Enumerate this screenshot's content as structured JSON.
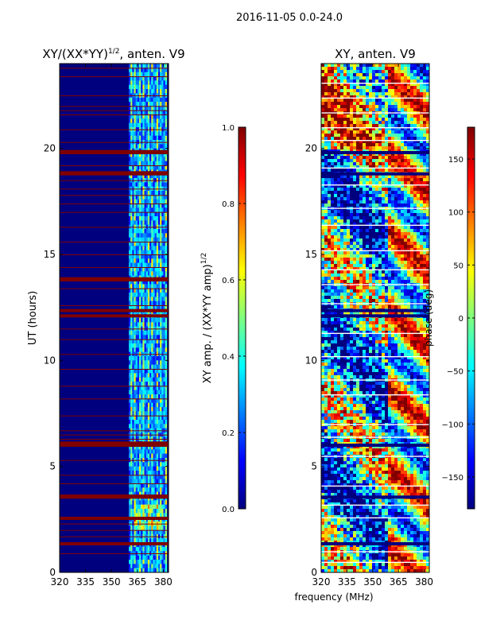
{
  "colors": {
    "jet": [
      "#00007f",
      "#0000ff",
      "#007fff",
      "#00ffff",
      "#7fff7f",
      "#ffff00",
      "#ff7f00",
      "#ff0000",
      "#7f0000"
    ],
    "background": "#00007f",
    "flag": "#7f0000"
  },
  "chart_data": {
    "suptitle": "2016-11-05 0.0-24.0",
    "shared_xlabel": "frequency (MHz)",
    "panels": [
      {
        "type": "heatmap",
        "title_main": "XY/(XX*YY)",
        "title_sup": "1/2",
        "title_tail": ", anten. V9",
        "xlabel": "",
        "ylabel": "UT (hours)",
        "xlim": [
          320,
          383
        ],
        "ylim": [
          0,
          24
        ],
        "xticks": [
          "320",
          "335",
          "350",
          "365",
          "380"
        ],
        "xtick_values": [
          320,
          335,
          350,
          365,
          380
        ],
        "yticks": [
          "0",
          "5",
          "10",
          "15",
          "20"
        ],
        "ytick_values": [
          0,
          5,
          10,
          15,
          20
        ],
        "active_band_mhz": [
          360,
          382
        ],
        "flagged_hours": [
          1.35,
          2.55,
          3.55,
          3.6,
          6.0,
          6.1,
          12.1,
          12.35,
          13.8,
          13.85,
          18.8,
          18.85,
          19.8,
          19.85
        ],
        "thin_flag_hours": [
          0.9,
          1.7,
          2.0,
          2.3,
          4.2,
          4.6,
          5.3,
          6.3,
          6.5,
          6.7,
          7.4,
          8.2,
          8.8,
          9.6,
          10.3,
          11.0,
          11.5,
          12.6,
          13.4,
          14.4,
          15.0,
          15.6,
          16.3,
          17.0,
          17.4,
          17.8,
          18.1,
          18.5,
          19.2,
          20.3,
          20.9,
          21.6,
          21.8,
          22.0,
          22.5,
          23.4,
          23.8
        ]
      },
      {
        "type": "heatmap",
        "title_main": "XY, anten. V9",
        "xlabel": "frequency (MHz)",
        "ylabel": "",
        "xlim": [
          320,
          383
        ],
        "ylim": [
          0,
          24
        ],
        "xticks": [
          "320",
          "335",
          "350",
          "365",
          "380"
        ],
        "xtick_values": [
          320,
          335,
          350,
          365,
          380
        ],
        "yticks": [
          "0",
          "5",
          "10",
          "15",
          "20"
        ],
        "ytick_values": [
          0,
          5,
          10,
          15,
          20
        ],
        "flagged_hours": [
          1.35,
          3.55,
          6.0,
          12.1,
          12.35,
          18.8,
          19.8
        ],
        "white_gap_hours": [
          0.5,
          1.0,
          2.6,
          3.2,
          4.1,
          5.5,
          6.4,
          7.0,
          8.4,
          9.1,
          10.2,
          11.3,
          12.7,
          13.6,
          14.3,
          15.2,
          16.4,
          17.2,
          18.3,
          19.1,
          20.4,
          21.0,
          21.7,
          22.4,
          23.1
        ]
      }
    ],
    "colorbars": [
      {
        "label_main": "XY amp. / (XX*YY amp)",
        "label_sup": "1/2",
        "range": [
          0.0,
          1.0
        ],
        "ticks": [
          "0.0",
          "0.2",
          "0.4",
          "0.6",
          "0.8",
          "1.0"
        ],
        "tick_values": [
          0.0,
          0.2,
          0.4,
          0.6,
          0.8,
          1.0
        ]
      },
      {
        "label": "phase (deg)",
        "range": [
          -180,
          180
        ],
        "ticks": [
          "−150",
          "−100",
          "−50",
          "0",
          "50",
          "100",
          "150"
        ],
        "tick_values": [
          -150,
          -100,
          -50,
          0,
          50,
          100,
          150
        ]
      }
    ]
  }
}
